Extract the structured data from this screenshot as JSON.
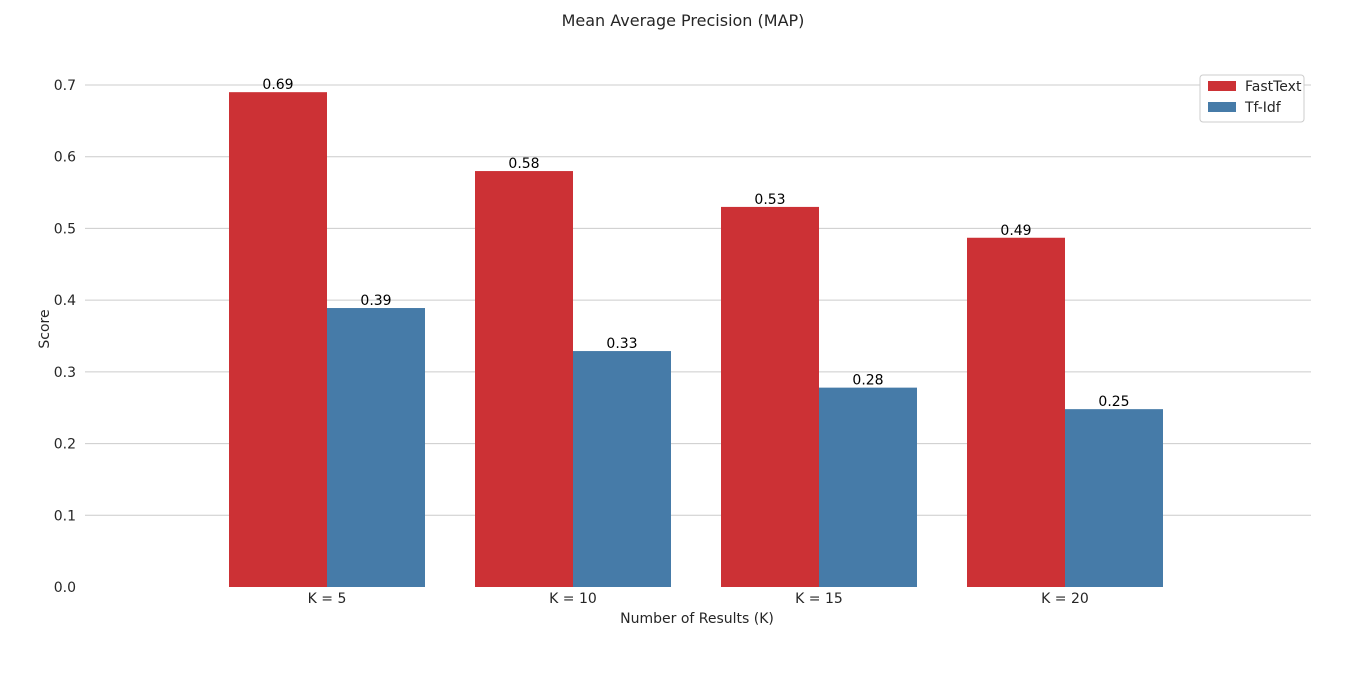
{
  "chart_data": {
    "type": "bar",
    "title": "Mean Average Precision (MAP)",
    "xlabel": "Number of Results (K)",
    "ylabel": "Score",
    "categories": [
      "K = 5",
      "K = 10",
      "K = 15",
      "K = 20"
    ],
    "series": [
      {
        "name": "FastText",
        "color": "#cc3135",
        "values": [
          0.69,
          0.58,
          0.53,
          0.487
        ],
        "labels": [
          "0.69",
          "0.58",
          "0.53",
          "0.49"
        ]
      },
      {
        "name": "Tf-Idf",
        "color": "#467ba8",
        "values": [
          0.389,
          0.329,
          0.278,
          0.248
        ],
        "labels": [
          "0.39",
          "0.33",
          "0.28",
          "0.25"
        ]
      }
    ],
    "yticks": [
      "0.0",
      "0.1",
      "0.2",
      "0.3",
      "0.4",
      "0.5",
      "0.6",
      "0.7"
    ],
    "ylim": [
      0,
      0.7
    ],
    "grid": true,
    "legend_position": "top-right"
  }
}
